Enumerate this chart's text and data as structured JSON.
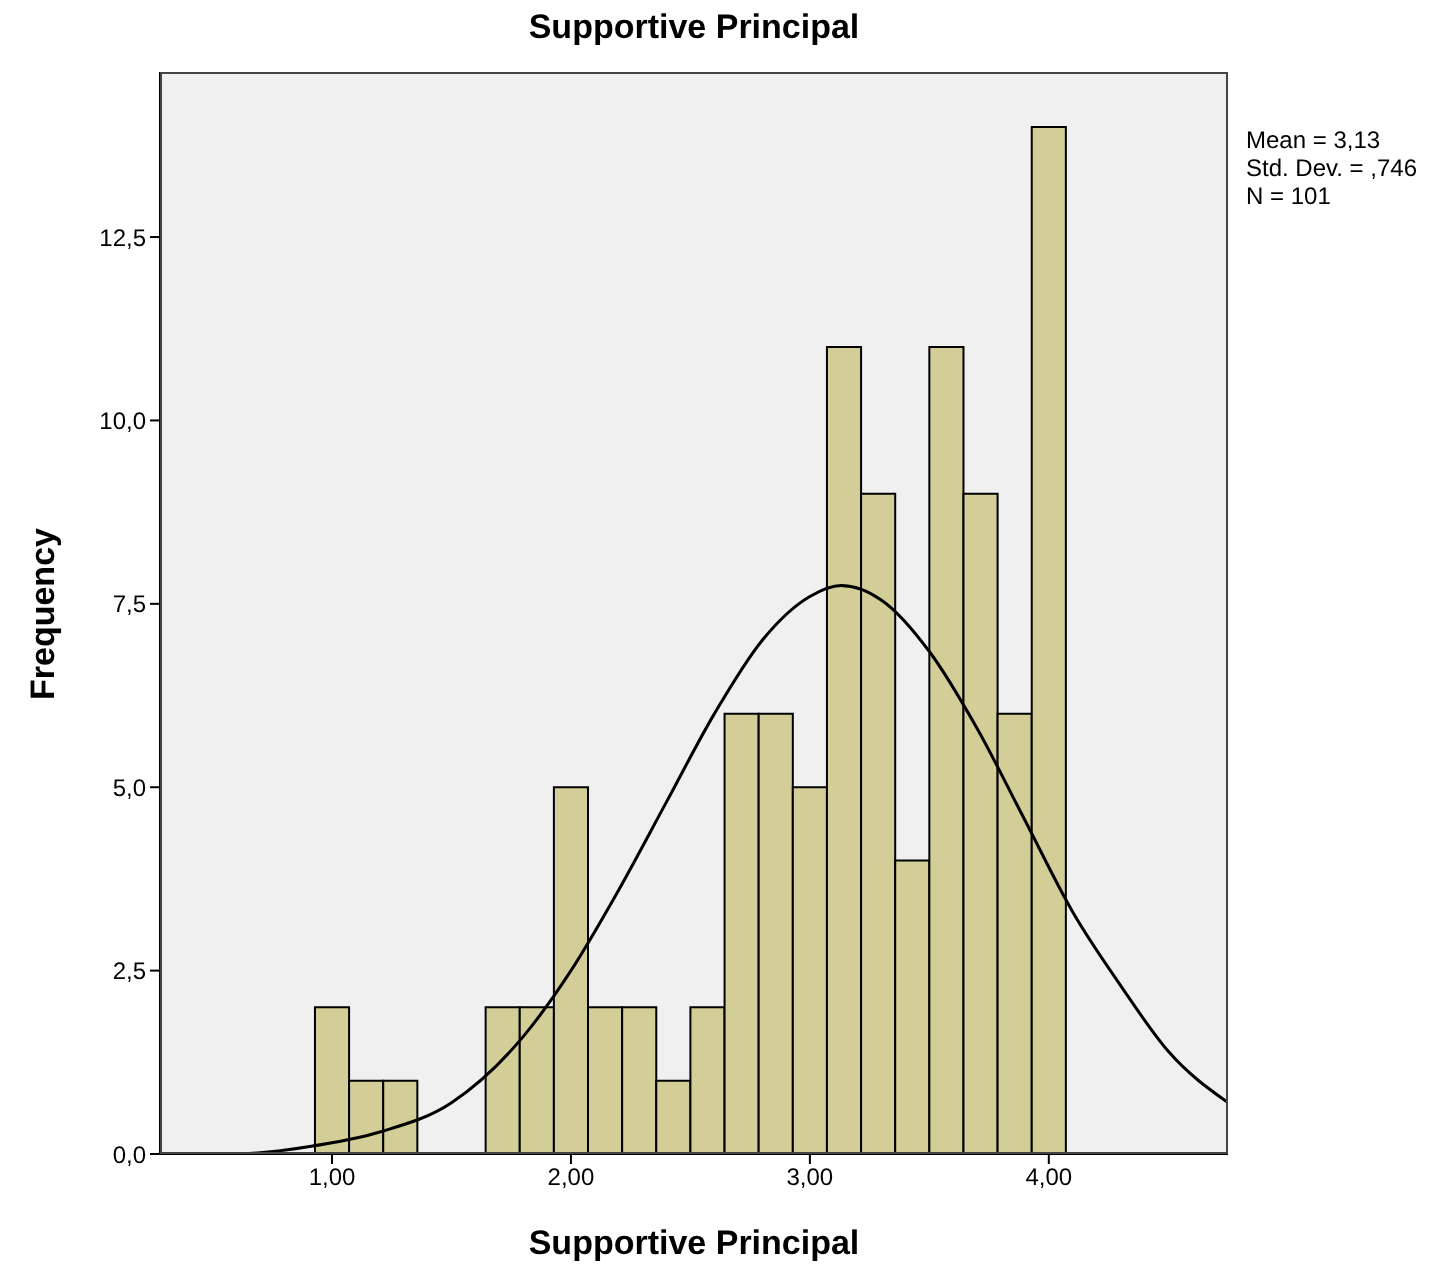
{
  "chart_data": {
    "type": "histogram",
    "title": "Supportive Principal",
    "xlabel": "Supportive Principal",
    "ylabel": "Frequency",
    "annotations": [
      "Mean = 3,13",
      "Std. Dev. = ,746",
      "N = 101"
    ],
    "xlim": [
      0.28,
      4.75
    ],
    "xticks": [
      {
        "value": 1,
        "label": "1,00"
      },
      {
        "value": 2,
        "label": "2,00"
      },
      {
        "value": 3,
        "label": "3,00"
      },
      {
        "value": 4,
        "label": "4,00"
      }
    ],
    "ylim": [
      0,
      14.75
    ],
    "yticks": [
      {
        "value": 0,
        "label": "0,0"
      },
      {
        "value": 2.5,
        "label": "2,5"
      },
      {
        "value": 5,
        "label": "5,0"
      },
      {
        "value": 7.5,
        "label": "7,5"
      },
      {
        "value": 10,
        "label": "10,0"
      },
      {
        "value": 12.5,
        "label": "12,5"
      }
    ],
    "grid": false,
    "series": [
      {
        "color": "#d3ce97",
        "bins": [
          0.9286,
          1.0714,
          1.2143,
          1.3571,
          1.5,
          1.6429,
          1.7857,
          1.9286,
          2.0714,
          2.2143,
          2.3571,
          2.5,
          2.6429,
          2.7857,
          2.9286,
          3.0714,
          3.2143,
          3.3571,
          3.5,
          3.6429,
          3.7857,
          3.9286,
          4.0714
        ],
        "values": [
          2,
          1,
          1,
          0,
          0,
          2,
          2,
          5,
          2,
          2,
          1,
          2,
          6,
          6,
          5,
          11,
          9,
          4,
          11,
          9,
          6,
          14
        ]
      },
      {
        "type": "line",
        "color": "#000000",
        "marker": "none",
        "x": [
          0.28,
          0.6,
          0.9,
          1.2,
          1.5,
          1.8,
          2.0,
          2.2,
          2.4,
          2.6,
          2.8,
          3.0,
          3.13,
          3.3,
          3.5,
          3.7,
          3.9,
          4.1,
          4.3,
          4.5,
          4.75
        ],
        "values": [
          0.0,
          0.0,
          0.1,
          0.3,
          0.7,
          1.6,
          2.5,
          3.6,
          4.8,
          6.0,
          7.0,
          7.6,
          7.75,
          7.55,
          6.85,
          5.8,
          4.55,
          3.3,
          2.3,
          1.4,
          0.7
        ]
      }
    ]
  }
}
